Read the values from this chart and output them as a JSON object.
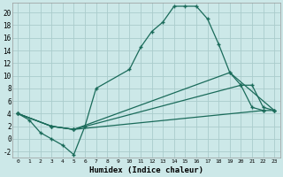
{
  "xlabel": "Humidex (Indice chaleur)",
  "bg_color": "#cce8e8",
  "grid_color": "#aacccc",
  "line_color": "#1a6b5a",
  "xlim": [
    -0.5,
    23.5
  ],
  "ylim": [
    -3.0,
    21.5
  ],
  "xticks": [
    0,
    1,
    2,
    3,
    4,
    5,
    6,
    7,
    8,
    9,
    10,
    11,
    12,
    13,
    14,
    15,
    16,
    17,
    18,
    19,
    20,
    21,
    22,
    23
  ],
  "yticks": [
    -2,
    0,
    2,
    4,
    6,
    8,
    10,
    12,
    14,
    16,
    18,
    20
  ],
  "curve1_x": [
    0,
    1,
    2,
    3,
    4,
    5,
    6,
    7,
    10,
    11,
    12,
    13,
    14,
    15,
    16,
    17,
    18,
    19,
    20,
    21,
    22
  ],
  "curve1_y": [
    4,
    3,
    1,
    0,
    -1,
    -2.5,
    2,
    8,
    11,
    14.5,
    17,
    18.5,
    21,
    21,
    21,
    19,
    15,
    10.5,
    8.5,
    5,
    4.5
  ],
  "curve2_x": [
    0,
    3,
    5,
    22,
    23
  ],
  "curve2_y": [
    4,
    2,
    1.5,
    4.5,
    4.5
  ],
  "curve3_x": [
    0,
    3,
    5,
    20,
    21,
    22,
    23
  ],
  "curve3_y": [
    4,
    2,
    1.5,
    8.5,
    8.5,
    5,
    4.5
  ],
  "curve4_x": [
    0,
    3,
    5,
    19,
    23
  ],
  "curve4_y": [
    4,
    2,
    1.5,
    10.5,
    4.5
  ]
}
